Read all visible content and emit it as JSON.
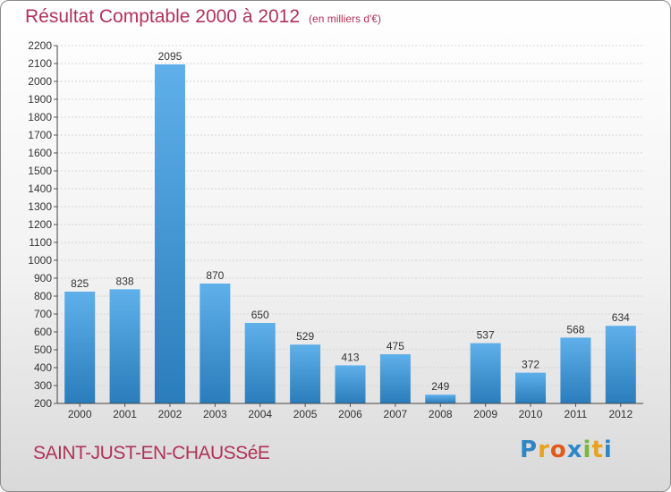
{
  "title": "Résultat Comptable 2000 à 2012",
  "subtitle": "(en milliers d'€)",
  "place": "SAINT-JUST-EN-CHAUSSéE",
  "logo": {
    "text": "Proxiti",
    "colors": [
      "#2f86c6",
      "#e8a21c",
      "#e05a1e",
      "#2f86c6",
      "#7ab83a",
      "#e8a21c",
      "#2f86c6"
    ]
  },
  "colors": {
    "title": "#b0325a",
    "bar_light": "#5fb0ea",
    "bar_dark": "#2a7dbb"
  },
  "chart_data": {
    "type": "bar",
    "title": "Résultat Comptable 2000 à 2012",
    "xlabel": "",
    "ylabel": "",
    "categories": [
      "2000",
      "2001",
      "2002",
      "2003",
      "2004",
      "2005",
      "2006",
      "2007",
      "2008",
      "2009",
      "2010",
      "2011",
      "2012"
    ],
    "values": [
      825,
      838,
      2095,
      870,
      650,
      529,
      413,
      475,
      249,
      537,
      372,
      568,
      634
    ],
    "ylim": [
      200,
      2200
    ],
    "yticks": [
      200,
      300,
      400,
      500,
      600,
      700,
      800,
      900,
      1000,
      1100,
      1200,
      1300,
      1400,
      1500,
      1600,
      1700,
      1800,
      1900,
      2000,
      2100,
      2200
    ],
    "grid": true
  }
}
